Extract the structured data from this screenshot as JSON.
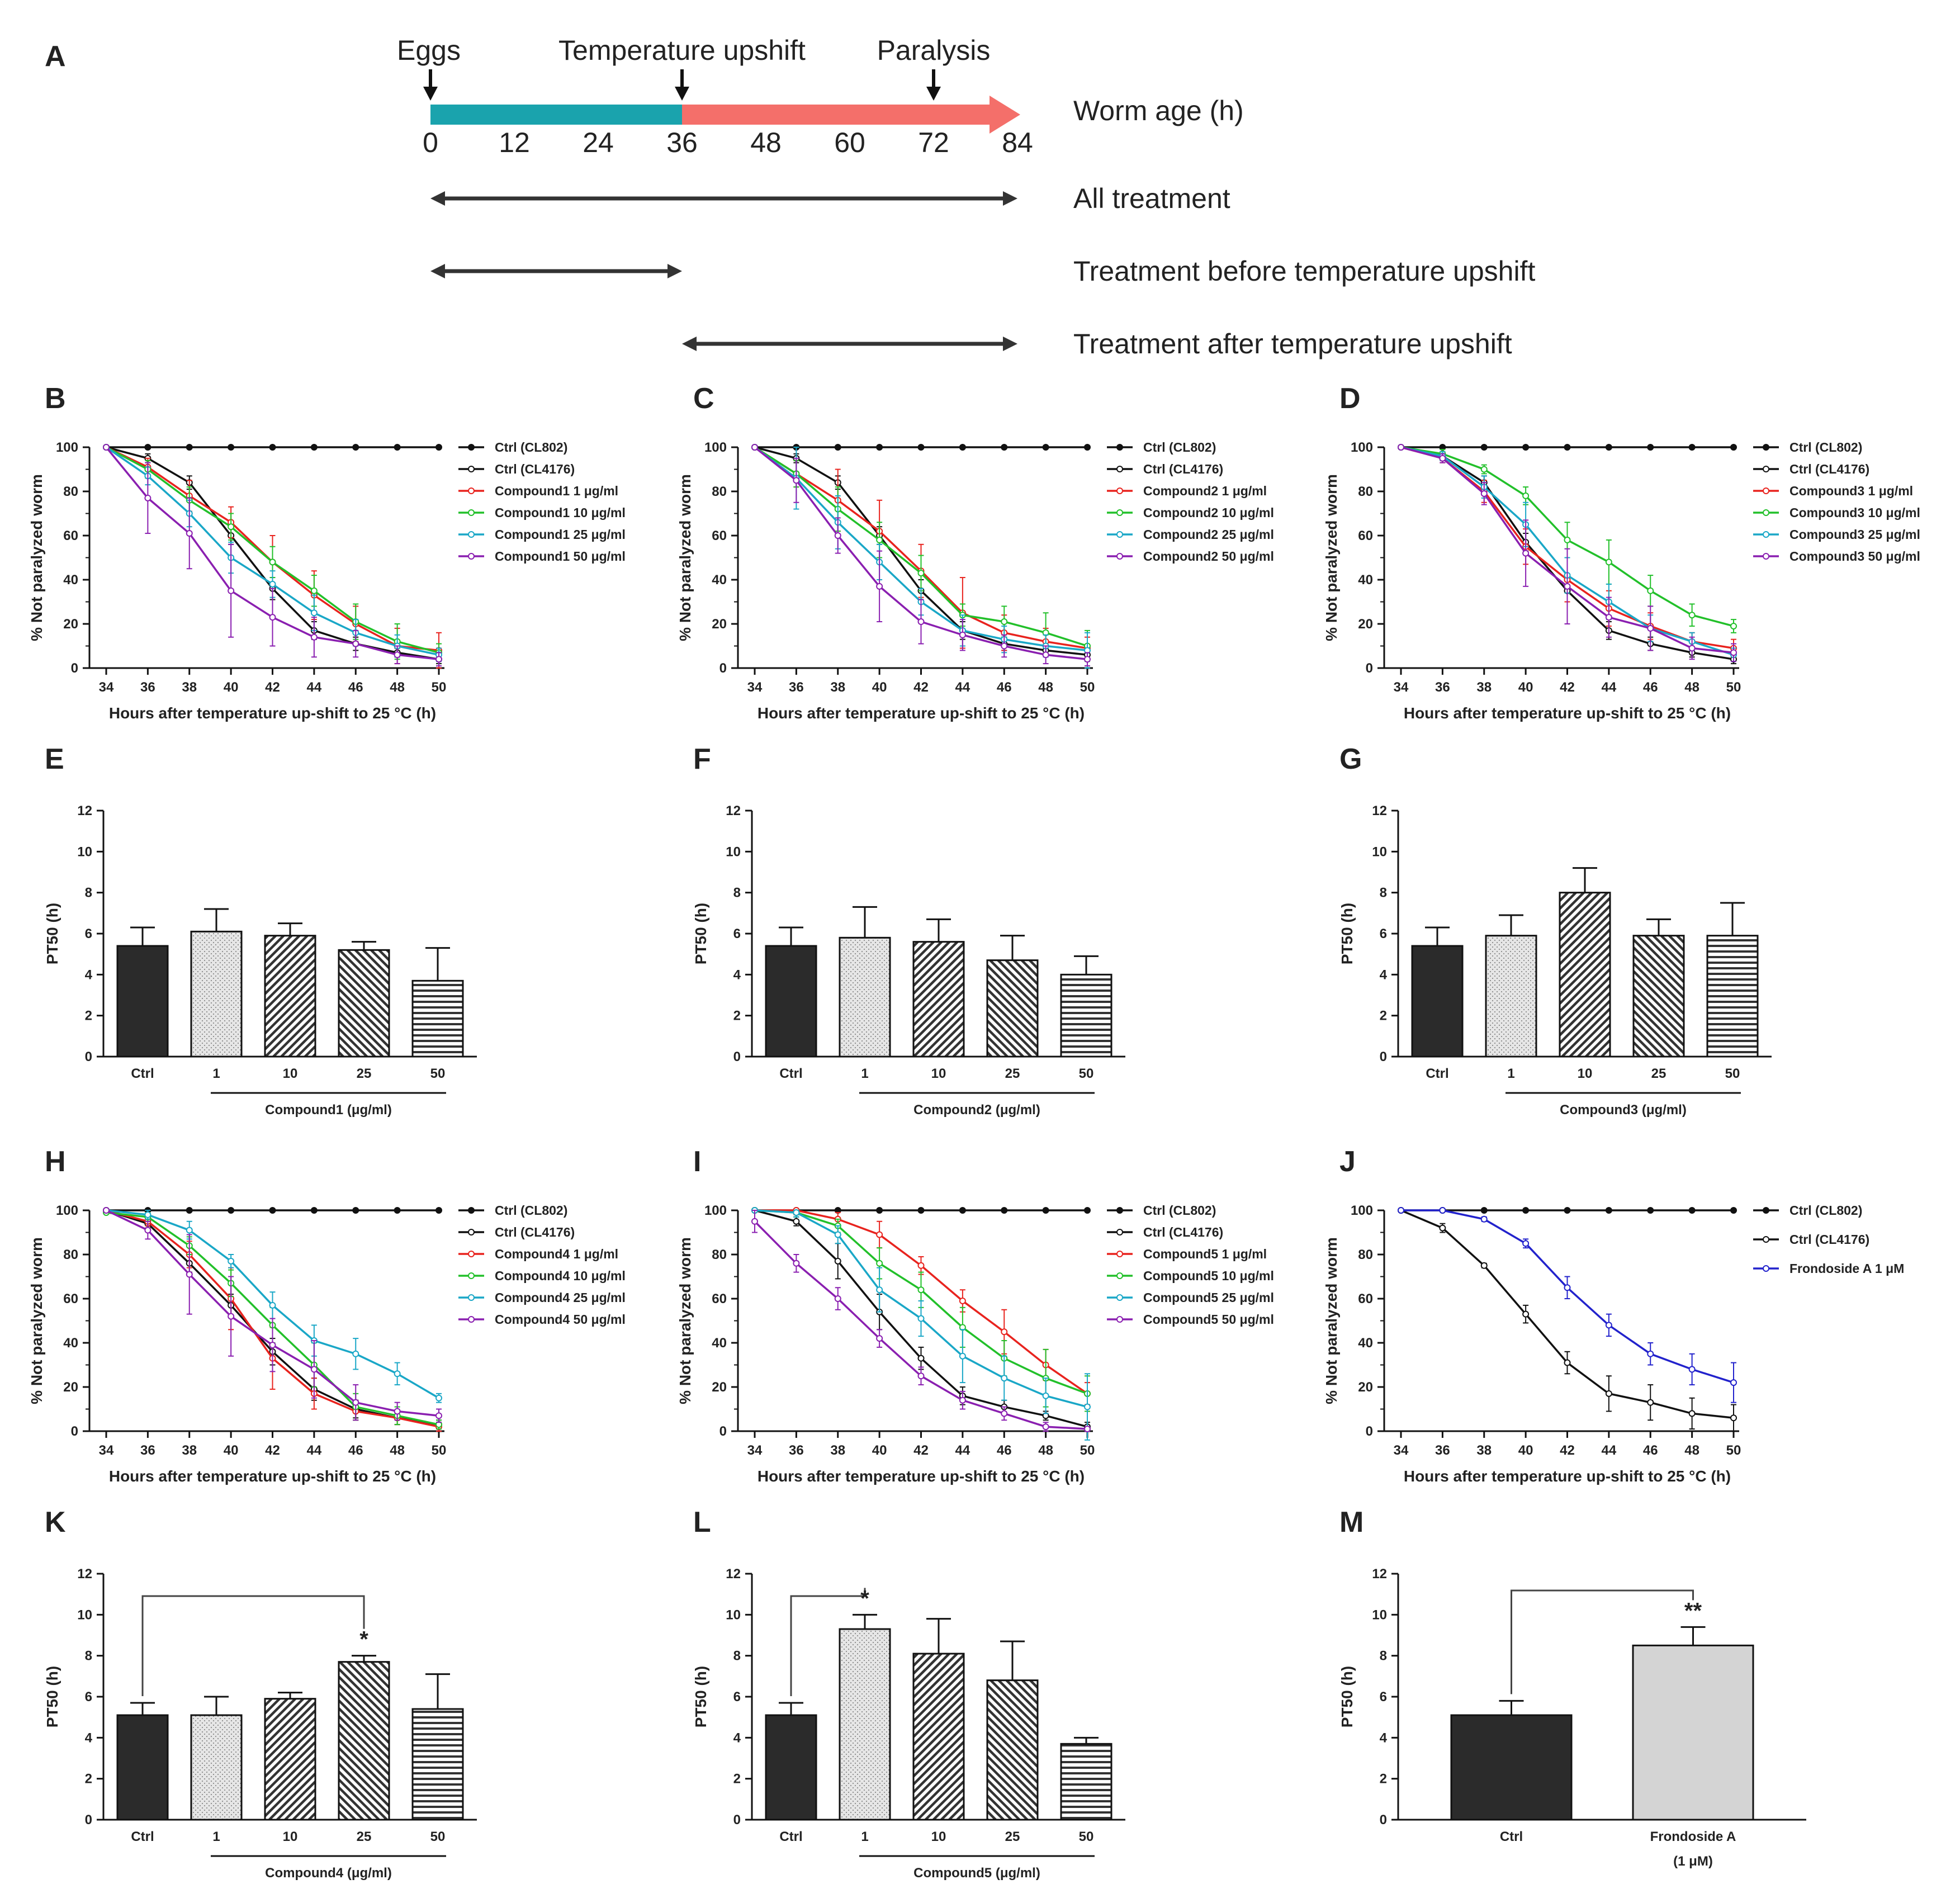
{
  "timeline": {
    "panel": "A",
    "markers": [
      {
        "label": "Eggs",
        "age": 0
      },
      {
        "label": "Temperature upshift",
        "age": 36
      },
      {
        "label": "Paralysis",
        "age": 72
      }
    ],
    "ticks": [
      "0",
      "12",
      "24",
      "36",
      "48",
      "60",
      "72",
      "84"
    ],
    "axis_label": "Worm age (h)",
    "rows": [
      {
        "label": "All treatment",
        "from": 0,
        "to": 84
      },
      {
        "label": "Treatment before temperature upshift",
        "from": 0,
        "to": 36
      },
      {
        "label": "Treatment after temperature upshift",
        "from": 36,
        "to": 84
      }
    ],
    "colors": {
      "before": "#1aa3ad",
      "after": "#f46f6a",
      "arrow": "#333333"
    }
  },
  "chart_data": [
    {
      "panel": "B",
      "type": "line",
      "x": [
        34,
        36,
        38,
        40,
        42,
        44,
        46,
        48,
        50
      ],
      "xlabel": "Hours after temperature up-shift to 25 °C (h)",
      "ylabel": "% Not paralyzed worm",
      "ylim": [
        0,
        100
      ],
      "series": [
        {
          "name": "Ctrl (CL802)",
          "color": "#111111",
          "values": [
            100,
            100,
            100,
            100,
            100,
            100,
            100,
            100,
            100
          ]
        },
        {
          "name": "Ctrl (CL4176)",
          "color": "#111111",
          "values": [
            100,
            95,
            84,
            60,
            36,
            17,
            11,
            7,
            4
          ],
          "err": [
            0,
            2,
            3,
            4,
            5,
            4,
            3,
            2,
            2
          ]
        },
        {
          "name": "Compound1 1 μg/ml",
          "color": "#e8231e",
          "values": [
            100,
            91,
            78,
            66,
            48,
            33,
            20,
            10,
            8
          ],
          "err": [
            0,
            4,
            7,
            7,
            12,
            11,
            8,
            8,
            8
          ]
        },
        {
          "name": "Compound1 10  μg/ml",
          "color": "#22c02a",
          "values": [
            100,
            90,
            76,
            64,
            48,
            35,
            21,
            12,
            7
          ],
          "err": [
            0,
            4,
            6,
            6,
            7,
            7,
            8,
            8,
            4
          ]
        },
        {
          "name": "Compound1 25 μg/ml",
          "color": "#1aa7c7",
          "values": [
            100,
            87,
            70,
            50,
            38,
            25,
            16,
            10,
            6
          ],
          "err": [
            0,
            4,
            6,
            7,
            6,
            8,
            6,
            5,
            3
          ]
        },
        {
          "name": "Compound1 50  μg/ml",
          "color": "#8a1fb0",
          "values": [
            100,
            77,
            61,
            35,
            23,
            14,
            11,
            6,
            4
          ],
          "err": [
            0,
            16,
            16,
            21,
            13,
            9,
            6,
            4,
            3
          ]
        }
      ]
    },
    {
      "panel": "C",
      "type": "line",
      "x": [
        34,
        36,
        38,
        40,
        42,
        44,
        46,
        48,
        50
      ],
      "xlabel": "Hours after temperature up-shift to 25 °C (h)",
      "ylabel": "% Not paralyzed worm",
      "ylim": [
        0,
        100
      ],
      "series": [
        {
          "name": "Ctrl (CL802)",
          "color": "#111111",
          "values": [
            100,
            100,
            100,
            100,
            100,
            100,
            100,
            100,
            100
          ]
        },
        {
          "name": "Ctrl (CL4176)",
          "color": "#111111",
          "values": [
            100,
            95,
            84,
            60,
            35,
            17,
            11,
            8,
            6
          ],
          "err": [
            0,
            2,
            3,
            4,
            5,
            4,
            3,
            2,
            2
          ]
        },
        {
          "name": "Compound2 1 μg/ml",
          "color": "#e8231e",
          "values": [
            100,
            88,
            76,
            62,
            44,
            25,
            16,
            12,
            9
          ],
          "err": [
            0,
            6,
            14,
            14,
            12,
            16,
            8,
            6,
            5
          ]
        },
        {
          "name": "Compound2 10 μg/ml",
          "color": "#22c02a",
          "values": [
            100,
            88,
            72,
            58,
            43,
            24,
            21,
            16,
            10
          ],
          "err": [
            0,
            6,
            10,
            8,
            8,
            5,
            7,
            9,
            7
          ]
        },
        {
          "name": "Compound2 25 μg/ml",
          "color": "#1aa7c7",
          "values": [
            100,
            86,
            66,
            48,
            30,
            17,
            13,
            10,
            8
          ],
          "err": [
            0,
            14,
            12,
            8,
            6,
            7,
            6,
            5,
            8
          ]
        },
        {
          "name": "Compound2 50 μg/ml",
          "color": "#8a1fb0",
          "values": [
            100,
            85,
            60,
            37,
            21,
            15,
            10,
            6,
            4
          ],
          "err": [
            0,
            10,
            8,
            16,
            10,
            7,
            5,
            4,
            3
          ]
        }
      ]
    },
    {
      "panel": "D",
      "type": "line",
      "x": [
        34,
        36,
        38,
        40,
        42,
        44,
        46,
        48,
        50
      ],
      "xlabel": "Hours after temperature up-shift to 25 °C (h)",
      "ylabel": "% Not paralyzed worm",
      "ylim": [
        0,
        100
      ],
      "series": [
        {
          "name": "Ctrl (CL802)",
          "color": "#111111",
          "values": [
            100,
            100,
            100,
            100,
            100,
            100,
            100,
            100,
            100
          ]
        },
        {
          "name": "Ctrl (CL4176)",
          "color": "#111111",
          "values": [
            100,
            96,
            84,
            57,
            35,
            17,
            11,
            7,
            4
          ],
          "err": [
            0,
            2,
            3,
            4,
            5,
            4,
            3,
            2,
            2
          ]
        },
        {
          "name": "Compound3 1 μg/ml",
          "color": "#e8231e",
          "values": [
            100,
            95,
            80,
            55,
            40,
            27,
            19,
            12,
            9
          ],
          "err": [
            0,
            2,
            5,
            8,
            10,
            8,
            6,
            4,
            4
          ]
        },
        {
          "name": "Compound3 10 μg/ml",
          "color": "#22c02a",
          "values": [
            100,
            97,
            90,
            78,
            58,
            48,
            35,
            24,
            19
          ],
          "err": [
            0,
            2,
            2,
            4,
            8,
            10,
            7,
            5,
            3
          ]
        },
        {
          "name": "Compound3 25 μg/ml",
          "color": "#1aa7c7",
          "values": [
            100,
            96,
            82,
            65,
            42,
            30,
            18,
            12,
            6
          ],
          "err": [
            0,
            2,
            5,
            10,
            8,
            8,
            6,
            4,
            3
          ]
        },
        {
          "name": "Compound3 50 μg/ml",
          "color": "#8a1fb0",
          "values": [
            100,
            95,
            79,
            52,
            37,
            23,
            18,
            9,
            7
          ],
          "err": [
            0,
            2,
            5,
            15,
            17,
            9,
            10,
            5,
            4
          ]
        }
      ]
    },
    {
      "panel": "E",
      "type": "bar",
      "categories": [
        "Ctrl",
        "1",
        "10",
        "25",
        "50"
      ],
      "values": [
        5.4,
        6.1,
        5.9,
        5.2,
        3.7
      ],
      "err": [
        0.9,
        1.1,
        0.6,
        0.4,
        1.6
      ],
      "ylabel": "PT50 (h)",
      "ylim": [
        0,
        12
      ],
      "group_label": "Compound1 (μg/ml)"
    },
    {
      "panel": "F",
      "type": "bar",
      "categories": [
        "Ctrl",
        "1",
        "10",
        "25",
        "50"
      ],
      "values": [
        5.4,
        5.8,
        5.6,
        4.7,
        4.0
      ],
      "err": [
        0.9,
        1.5,
        1.1,
        1.2,
        0.9
      ],
      "ylabel": "PT50 (h)",
      "ylim": [
        0,
        12
      ],
      "group_label": "Compound2 (μg/ml)"
    },
    {
      "panel": "G",
      "type": "bar",
      "categories": [
        "Ctrl",
        "1",
        "10",
        "25",
        "50"
      ],
      "values": [
        5.4,
        5.9,
        8.0,
        5.9,
        5.9
      ],
      "err": [
        0.9,
        1.0,
        1.2,
        0.8,
        1.6
      ],
      "ylabel": "PT50 (h)",
      "ylim": [
        0,
        12
      ],
      "group_label": "Compound3 (μg/ml)"
    },
    {
      "panel": "H",
      "type": "line",
      "x": [
        34,
        36,
        38,
        40,
        42,
        44,
        46,
        48,
        50
      ],
      "xlabel": "Hours after temperature up-shift to 25 °C (h)",
      "ylabel": "% Not paralyzed worm",
      "ylim": [
        0,
        100
      ],
      "series": [
        {
          "name": "Ctrl (CL802)",
          "color": "#111111",
          "values": [
            100,
            100,
            100,
            100,
            100,
            100,
            100,
            100,
            100
          ]
        },
        {
          "name": "Ctrl (CL4176)",
          "color": "#111111",
          "values": [
            100,
            94,
            76,
            57,
            36,
            19,
            10,
            6,
            3
          ],
          "err": [
            0,
            2,
            4,
            5,
            6,
            5,
            4,
            3,
            2
          ]
        },
        {
          "name": "Compound4 1 μg/ml",
          "color": "#e8231e",
          "values": [
            100,
            95,
            80,
            60,
            33,
            17,
            9,
            6,
            2
          ],
          "err": [
            0,
            2,
            6,
            14,
            14,
            7,
            4,
            3,
            2
          ]
        },
        {
          "name": "Compound4 10 μg/ml",
          "color": "#22c02a",
          "values": [
            99,
            97,
            84,
            67,
            48,
            30,
            11,
            7,
            3
          ],
          "err": [
            0,
            2,
            4,
            6,
            8,
            10,
            6,
            4,
            2
          ]
        },
        {
          "name": "Compound4 25 μg/ml",
          "color": "#1aa7c7",
          "values": [
            100,
            98,
            91,
            77,
            57,
            41,
            35,
            26,
            15
          ],
          "err": [
            0,
            2,
            4,
            3,
            6,
            7,
            7,
            5,
            2
          ]
        },
        {
          "name": "Compound4 50 μg/ml",
          "color": "#8a1fb0",
          "values": [
            100,
            91,
            71,
            52,
            39,
            28,
            13,
            9,
            7
          ],
          "err": [
            0,
            4,
            18,
            18,
            12,
            13,
            8,
            4,
            3
          ]
        }
      ]
    },
    {
      "panel": "I",
      "type": "line",
      "x": [
        34,
        36,
        38,
        40,
        42,
        44,
        46,
        48,
        50
      ],
      "xlabel": "Hours after temperature up-shift to 25 °C (h)",
      "ylabel": "% Not paralyzed worm",
      "ylim": [
        0,
        100
      ],
      "series": [
        {
          "name": "Ctrl (CL802)",
          "color": "#111111",
          "values": [
            100,
            100,
            100,
            100,
            100,
            100,
            100,
            100,
            100
          ]
        },
        {
          "name": "Ctrl (CL4176)",
          "color": "#111111",
          "values": [
            100,
            95,
            77,
            54,
            33,
            16,
            11,
            7,
            2
          ],
          "err": [
            0,
            2,
            8,
            8,
            5,
            4,
            3,
            2,
            2
          ]
        },
        {
          "name": "Compound5 1 μg/ml",
          "color": "#e8231e",
          "values": [
            100,
            100,
            96,
            89,
            75,
            59,
            45,
            30,
            17
          ],
          "err": [
            0,
            2,
            3,
            6,
            4,
            5,
            10,
            7,
            5
          ]
        },
        {
          "name": "Compound5 10 μg/ml",
          "color": "#22c02a",
          "values": [
            100,
            99,
            93,
            76,
            64,
            47,
            33,
            24,
            17
          ],
          "err": [
            0,
            2,
            3,
            7,
            8,
            9,
            8,
            13,
            8
          ]
        },
        {
          "name": "Compound5 25 μg/ml",
          "color": "#1aa7c7",
          "values": [
            100,
            99,
            89,
            64,
            51,
            34,
            24,
            16,
            11
          ],
          "err": [
            0,
            2,
            4,
            10,
            8,
            12,
            10,
            8,
            15
          ]
        },
        {
          "name": "Compound5 50 μg/ml",
          "color": "#8a1fb0",
          "values": [
            95,
            76,
            60,
            42,
            25,
            14,
            8,
            2,
            1
          ],
          "err": [
            5,
            4,
            5,
            4,
            4,
            4,
            3,
            2,
            1
          ]
        }
      ]
    },
    {
      "panel": "J",
      "type": "line",
      "x": [
        34,
        36,
        38,
        40,
        42,
        44,
        46,
        48,
        50
      ],
      "xlabel": "Hours after temperature up-shift to 25 °C (h)",
      "ylabel": "% Not paralyzed worm",
      "ylim": [
        0,
        100
      ],
      "series": [
        {
          "name": "Ctrl (CL802)",
          "color": "#111111",
          "values": [
            100,
            100,
            100,
            100,
            100,
            100,
            100,
            100,
            100
          ]
        },
        {
          "name": "Ctrl (CL4176)",
          "color": "#111111",
          "values": [
            100,
            92,
            75,
            53,
            31,
            17,
            13,
            8,
            6
          ],
          "err": [
            0,
            2,
            1,
            4,
            5,
            8,
            8,
            7,
            6
          ]
        },
        {
          "name": "Frondoside A 1 μM",
          "color": "#2222cc",
          "values": [
            100,
            100,
            96,
            85,
            65,
            48,
            35,
            28,
            22
          ],
          "err": [
            0,
            0,
            1,
            2,
            5,
            5,
            5,
            7,
            9
          ]
        }
      ]
    },
    {
      "panel": "K",
      "type": "bar",
      "categories": [
        "Ctrl",
        "1",
        "10",
        "25",
        "50"
      ],
      "values": [
        5.1,
        5.1,
        5.9,
        7.7,
        5.4
      ],
      "err": [
        0.6,
        0.9,
        0.3,
        0.3,
        1.7
      ],
      "ylabel": "PT50 (h)",
      "ylim": [
        0,
        12
      ],
      "group_label": "Compound4 (μg/ml)",
      "significance": {
        "from": 0,
        "to": 3,
        "mark": "*"
      }
    },
    {
      "panel": "L",
      "type": "bar",
      "categories": [
        "Ctrl",
        "1",
        "10",
        "25",
        "50"
      ],
      "values": [
        5.1,
        9.3,
        8.1,
        6.8,
        3.7
      ],
      "err": [
        0.6,
        0.7,
        1.7,
        1.9,
        0.3
      ],
      "ylabel": "PT50 (h)",
      "ylim": [
        0,
        12
      ],
      "group_label": "Compound5 (μg/ml)",
      "significance": {
        "from": 0,
        "to": 1,
        "mark": "*"
      }
    },
    {
      "panel": "M",
      "type": "bar",
      "categories": [
        "Ctrl",
        "Frondoside A"
      ],
      "subcategory": "(1 μM)",
      "values": [
        5.1,
        8.5
      ],
      "err": [
        0.7,
        0.9
      ],
      "ylabel": "PT50 (h)",
      "ylim": [
        0,
        12
      ],
      "significance": {
        "from": 0,
        "to": 1,
        "mark": "**"
      }
    }
  ]
}
